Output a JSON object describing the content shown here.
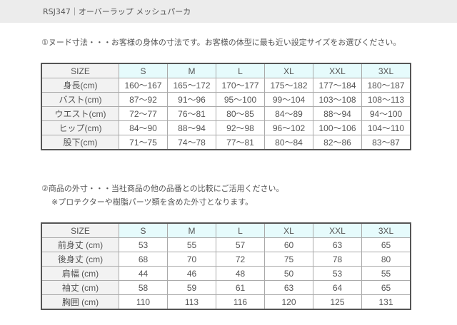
{
  "header": {
    "title": "RSJ347｜オーバーラップ メッシュパーカ"
  },
  "section1": {
    "note": "①ヌード寸法・・・お客様の身体の寸法です。お客様の体型に最も近い設定サイズをお選びください。",
    "header": [
      "SIZE",
      "S",
      "M",
      "L",
      "XL",
      "XXL",
      "3XL"
    ],
    "rows": [
      [
        "身長(cm)",
        "160～167",
        "165～172",
        "170～177",
        "175～182",
        "177～184",
        "180～187"
      ],
      [
        "バスト(cm)",
        "87～92",
        "91～96",
        "95～100",
        "99～104",
        "103～108",
        "108～113"
      ],
      [
        "ウエスト(cm)",
        "72～77",
        "76～81",
        "80～85",
        "84～89",
        "88～94",
        "94～100"
      ],
      [
        "ヒップ(cm)",
        "84～90",
        "88～94",
        "92～98",
        "96～102",
        "100～106",
        "104～110"
      ],
      [
        "股下(cm)",
        "71～75",
        "74～78",
        "77～81",
        "80～84",
        "82～86",
        "83～87"
      ]
    ]
  },
  "section2": {
    "note": "②商品の外寸・・・当社商品の他の品番との比較にご活用ください。",
    "subnote": "※プロテクターや樹脂パーツ類を含めた外寸となります。",
    "header": [
      "SIZE",
      "S",
      "M",
      "L",
      "XL",
      "XXL",
      "3XL"
    ],
    "rows": [
      [
        "前身丈 (cm)",
        "53",
        "55",
        "57",
        "60",
        "63",
        "65"
      ],
      [
        "後身丈 (cm)",
        "68",
        "70",
        "72",
        "75",
        "78",
        "80"
      ],
      [
        "肩幅 (cm)",
        "44",
        "46",
        "48",
        "50",
        "53",
        "55"
      ],
      [
        "袖丈 (cm)",
        "58",
        "59",
        "61",
        "63",
        "64",
        "65"
      ],
      [
        "胸囲 (cm)",
        "110",
        "113",
        "116",
        "120",
        "125",
        "131"
      ]
    ]
  }
}
